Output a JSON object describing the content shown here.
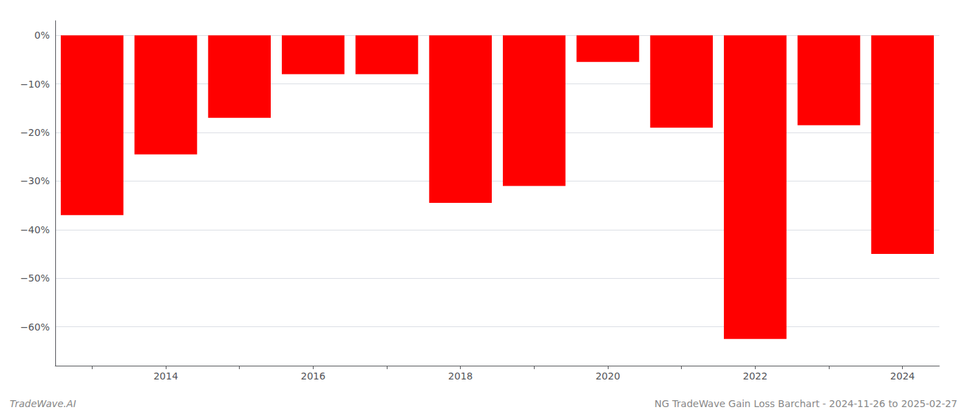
{
  "chart_data": {
    "type": "bar",
    "categories": [
      null,
      "2014",
      null,
      "2016",
      null,
      "2018",
      null,
      "2020",
      null,
      "2022",
      null,
      "2024"
    ],
    "values": [
      -37.0,
      -24.5,
      -17.0,
      -8.0,
      -8.0,
      -34.5,
      -31.0,
      -5.5,
      -19.0,
      -62.5,
      -18.5,
      -45.0
    ],
    "color": "#ff0000",
    "ylim": [
      -68,
      3
    ],
    "yticks": [
      {
        "value": 0,
        "label": "0%"
      },
      {
        "value": -10,
        "label": "−10%"
      },
      {
        "value": -20,
        "label": "−20%"
      },
      {
        "value": -30,
        "label": "−30%"
      },
      {
        "value": -40,
        "label": "−40%"
      },
      {
        "value": -50,
        "label": "−50%"
      },
      {
        "value": -60,
        "label": "−60%"
      }
    ],
    "grid": true,
    "annotations": [
      "TradeWave.AI",
      "NG TradeWave Gain Loss Barchart - 2024-11-26 to 2025-02-27"
    ]
  }
}
